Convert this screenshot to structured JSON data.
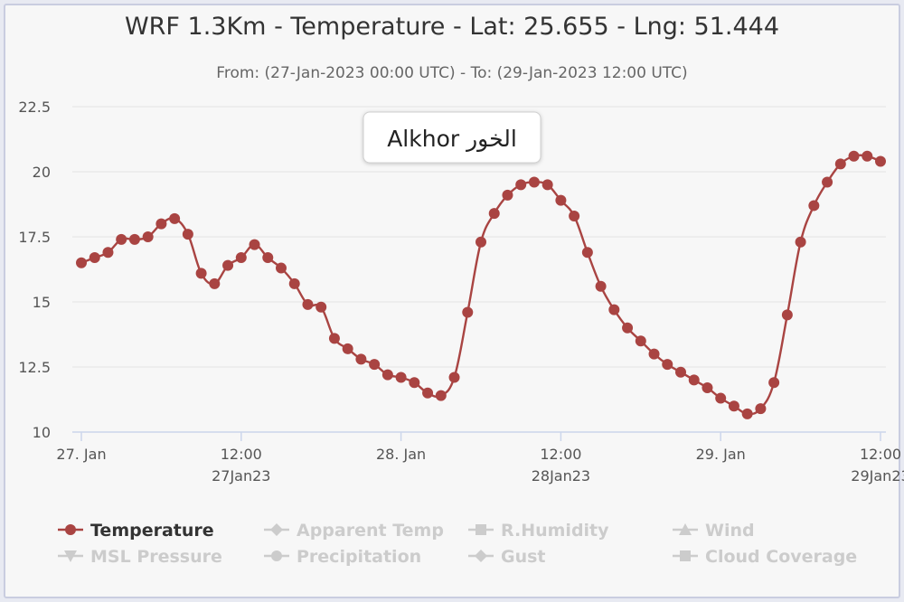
{
  "chart_data": {
    "type": "line",
    "title": "WRF 1.3Km - Temperature - Lat: 25.655 - Lng: 51.444",
    "subtitle": "From: (27-Jan-2023 00:00 UTC) - To: (29-Jan-2023 12:00 UTC)",
    "annotation": "Alkhor الخور",
    "ylim": [
      10,
      22.5
    ],
    "yticks": [
      "22.5",
      "20",
      "17.5",
      "15",
      "12.5",
      "10"
    ],
    "yticks_values": [
      22.5,
      20,
      17.5,
      15,
      12.5,
      10
    ],
    "xticks": [
      {
        "hour": 0,
        "label": "27. Jan",
        "sub": ""
      },
      {
        "hour": 12,
        "label": "12:00",
        "sub": "27Jan23"
      },
      {
        "hour": 24,
        "label": "28. Jan",
        "sub": ""
      },
      {
        "hour": 36,
        "label": "12:00",
        "sub": "28Jan23"
      },
      {
        "hour": 48,
        "label": "29. Jan",
        "sub": ""
      },
      {
        "hour": 60,
        "label": "12:00",
        "sub": "29Jan23"
      }
    ],
    "grid": true,
    "legend_placement": "bottom",
    "series": [
      {
        "name": "Temperature",
        "color": "#a94442",
        "values": [
          16.5,
          16.7,
          16.9,
          17.4,
          17.4,
          17.5,
          18.0,
          18.2,
          17.6,
          16.1,
          15.7,
          16.4,
          16.7,
          17.2,
          16.7,
          16.3,
          15.7,
          14.9,
          14.8,
          13.6,
          13.2,
          12.8,
          12.6,
          12.2,
          12.1,
          11.9,
          11.5,
          11.4,
          12.1,
          14.6,
          17.3,
          18.4,
          19.1,
          19.5,
          19.6,
          19.5,
          18.9,
          18.3,
          16.9,
          15.6,
          14.7,
          14.0,
          13.5,
          13.0,
          12.6,
          12.3,
          12.0,
          11.7,
          11.3,
          11.0,
          10.7,
          10.9,
          11.9,
          14.5,
          17.3,
          18.7,
          19.6,
          20.3,
          20.6,
          20.6,
          20.4
        ]
      }
    ]
  },
  "legend": {
    "items": [
      {
        "label": "Temperature",
        "active": true,
        "symbol": "circle"
      },
      {
        "label": "Apparent Temp",
        "active": false,
        "symbol": "diamond"
      },
      {
        "label": "R.Humidity",
        "active": false,
        "symbol": "square"
      },
      {
        "label": "Wind",
        "active": false,
        "symbol": "triangle"
      },
      {
        "label": "MSL Pressure",
        "active": false,
        "symbol": "triangle-down"
      },
      {
        "label": "Precipitation",
        "active": false,
        "symbol": "circle"
      },
      {
        "label": "Gust",
        "active": false,
        "symbol": "diamond"
      },
      {
        "label": "Cloud Coverage",
        "active": false,
        "symbol": "square"
      }
    ]
  },
  "colors": {
    "series": "#a94442",
    "inactive": "#cccccc",
    "grid": "#e3e3e3",
    "axis": "#ccd6eb"
  }
}
